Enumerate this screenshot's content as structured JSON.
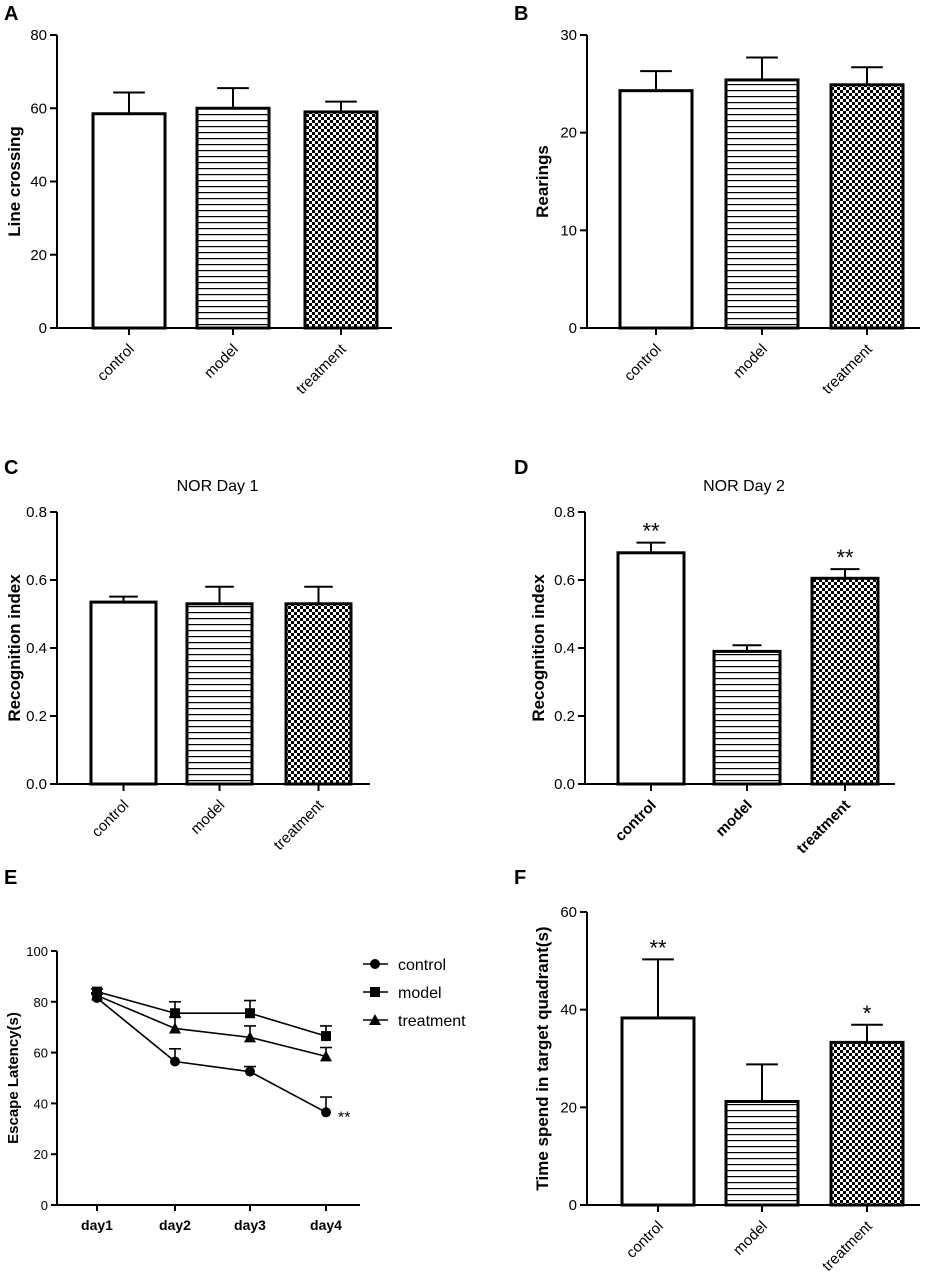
{
  "figure": {
    "panel_letters": [
      "A",
      "B",
      "C",
      "D",
      "E",
      "F"
    ]
  },
  "chart_data": [
    {
      "id": "A",
      "type": "bar",
      "title": "",
      "xlabel": "",
      "ylabel": "Line crossing",
      "categories": [
        "control",
        "model",
        "treatment"
      ],
      "values": [
        58.5,
        60.0,
        59.0
      ],
      "errors": [
        5.8,
        5.5,
        2.8
      ],
      "patterns": [
        "none",
        "hlines",
        "checker"
      ],
      "ylim": [
        0,
        80
      ],
      "yticks": [
        0,
        20,
        40,
        60,
        80
      ],
      "tick_labels": [
        "0",
        "20",
        "40",
        "60",
        "80"
      ],
      "bold_categories": false,
      "significance": [
        "",
        "",
        ""
      ]
    },
    {
      "id": "B",
      "type": "bar",
      "title": "",
      "xlabel": "",
      "ylabel": "Rearings",
      "categories": [
        "control",
        "model",
        "treatment"
      ],
      "values": [
        24.3,
        25.4,
        24.9
      ],
      "errors": [
        2.0,
        2.3,
        1.8
      ],
      "patterns": [
        "none",
        "hlines",
        "checker"
      ],
      "ylim": [
        0,
        30
      ],
      "yticks": [
        0,
        10,
        20,
        30
      ],
      "tick_labels": [
        "0",
        "10",
        "20",
        "30"
      ],
      "bold_categories": false,
      "significance": [
        "",
        "",
        ""
      ]
    },
    {
      "id": "C",
      "type": "bar",
      "title": "NOR Day 1",
      "xlabel": "",
      "ylabel": "Recognition index",
      "categories": [
        "control",
        "model",
        "treatment"
      ],
      "values": [
        0.535,
        0.53,
        0.53
      ],
      "errors": [
        0.016,
        0.05,
        0.05
      ],
      "patterns": [
        "none",
        "hlines",
        "checker"
      ],
      "ylim": [
        0,
        0.8
      ],
      "yticks": [
        0,
        0.2,
        0.4,
        0.6,
        0.8
      ],
      "tick_labels": [
        "0.0",
        "0.2",
        "0.4",
        "0.6",
        "0.8"
      ],
      "bold_categories": false,
      "significance": [
        "",
        "",
        ""
      ]
    },
    {
      "id": "D",
      "type": "bar",
      "title": "NOR Day 2",
      "xlabel": "",
      "ylabel": "Recognition index",
      "categories": [
        "control",
        "model",
        "treatment"
      ],
      "values": [
        0.68,
        0.39,
        0.605
      ],
      "errors": [
        0.03,
        0.018,
        0.027
      ],
      "patterns": [
        "none",
        "hlines",
        "checker"
      ],
      "ylim": [
        0,
        0.8
      ],
      "yticks": [
        0,
        0.2,
        0.4,
        0.6,
        0.8
      ],
      "tick_labels": [
        "0.0",
        "0.2",
        "0.4",
        "0.6",
        "0.8"
      ],
      "bold_categories": true,
      "significance": [
        "**",
        "",
        "**"
      ]
    },
    {
      "id": "E",
      "type": "line",
      "title": "",
      "xlabel": "",
      "ylabel": "Escape Latency(s)",
      "categories": [
        "day1",
        "day2",
        "day3",
        "day4"
      ],
      "series": [
        {
          "name": "control",
          "marker": "circle",
          "values": [
            81.5,
            56.5,
            52.5,
            36.5
          ],
          "errors": [
            1.5,
            5.0,
            2.0,
            6.0
          ]
        },
        {
          "name": "model",
          "marker": "square",
          "values": [
            84.0,
            75.5,
            75.5,
            66.5
          ],
          "errors": [
            1.0,
            4.5,
            5.0,
            4.0
          ]
        },
        {
          "name": "treatment",
          "marker": "triangle",
          "values": [
            82.5,
            69.5,
            66.0,
            58.5
          ],
          "errors": [
            1.0,
            4.5,
            4.5,
            3.5
          ]
        }
      ],
      "ylim": [
        0,
        100
      ],
      "yticks": [
        0,
        20,
        40,
        60,
        80,
        100
      ],
      "tick_labels": [
        "0",
        "20",
        "40",
        "60",
        "80",
        "100"
      ],
      "legend_position": "right",
      "annotation": "**"
    },
    {
      "id": "F",
      "type": "bar",
      "title": "",
      "xlabel": "",
      "ylabel": "Time spend in target quadrant(s)",
      "categories": [
        "control",
        "model",
        "treatment"
      ],
      "values": [
        38.3,
        21.2,
        33.3
      ],
      "errors": [
        12.0,
        7.6,
        3.6
      ],
      "patterns": [
        "none",
        "hlines",
        "checker"
      ],
      "ylim": [
        0,
        60
      ],
      "yticks": [
        0,
        20,
        40,
        60
      ],
      "tick_labels": [
        "0",
        "20",
        "40",
        "60"
      ],
      "bold_categories": false,
      "significance": [
        "**",
        "",
        "*"
      ]
    }
  ]
}
